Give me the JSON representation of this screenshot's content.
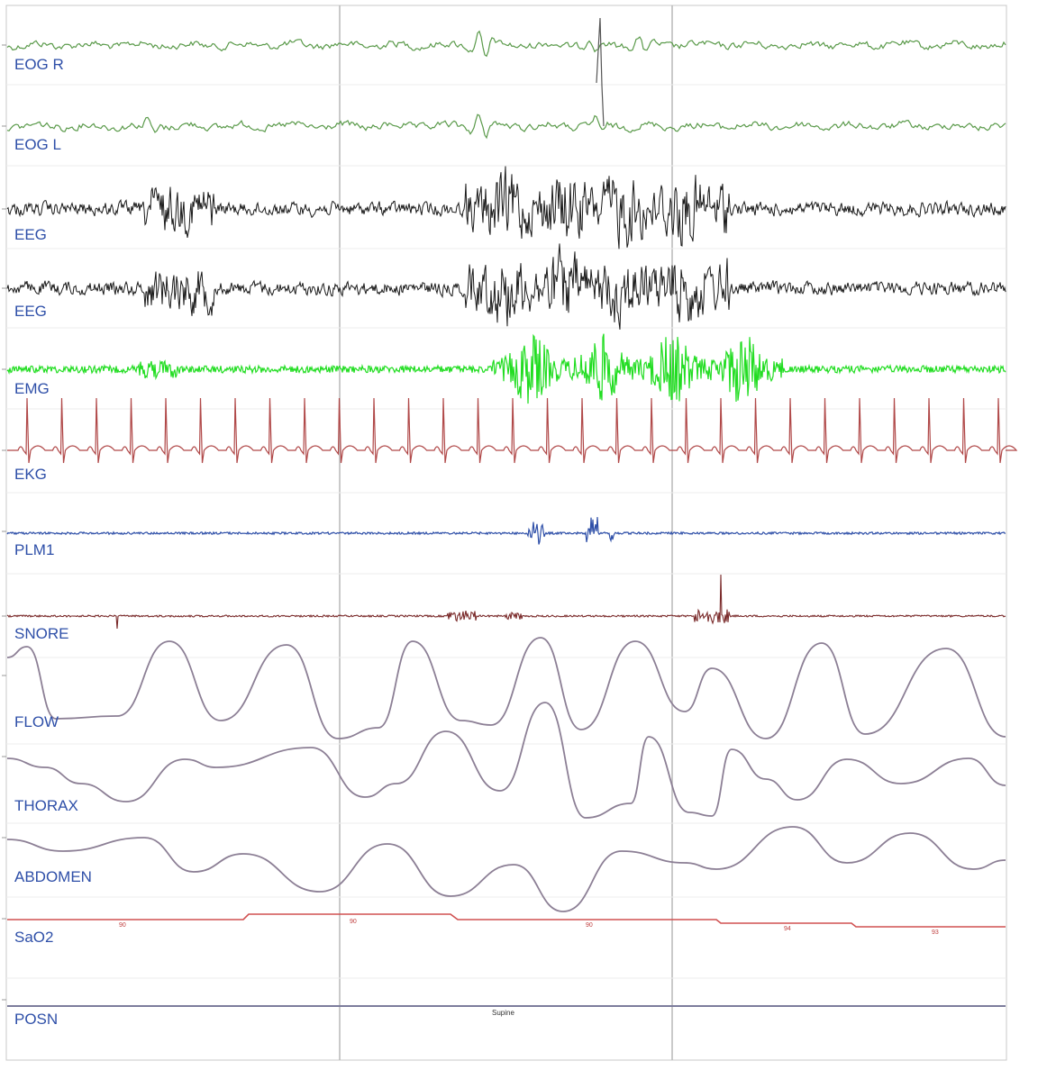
{
  "chart_data": {
    "type": "line",
    "title": "",
    "channels": [
      {
        "name": "EOG R",
        "color": "#5a9a4a"
      },
      {
        "name": "EOG L",
        "color": "#5a9a4a"
      },
      {
        "name": "EEG",
        "color": "#1a1a1a"
      },
      {
        "name": "EEG",
        "color": "#1a1a1a"
      },
      {
        "name": "EMG",
        "color": "#22dd22"
      },
      {
        "name": "EKG",
        "color": "#b04848"
      },
      {
        "name": "PLM1",
        "color": "#2e4fa8"
      },
      {
        "name": "SNORE",
        "color": "#7a2a2a"
      },
      {
        "name": "FLOW",
        "color": "#8c7f95"
      },
      {
        "name": "THORAX",
        "color": "#8c7f95"
      },
      {
        "name": "ABDOMEN",
        "color": "#8c7f95"
      },
      {
        "name": "SaO2",
        "color": "#d05050"
      },
      {
        "name": "POSN",
        "color": "#7c7c9c"
      }
    ],
    "sao2_tick_labels": [
      "90",
      "90",
      "90",
      "94",
      "93"
    ],
    "posn_value": "Supine",
    "grid": true
  }
}
